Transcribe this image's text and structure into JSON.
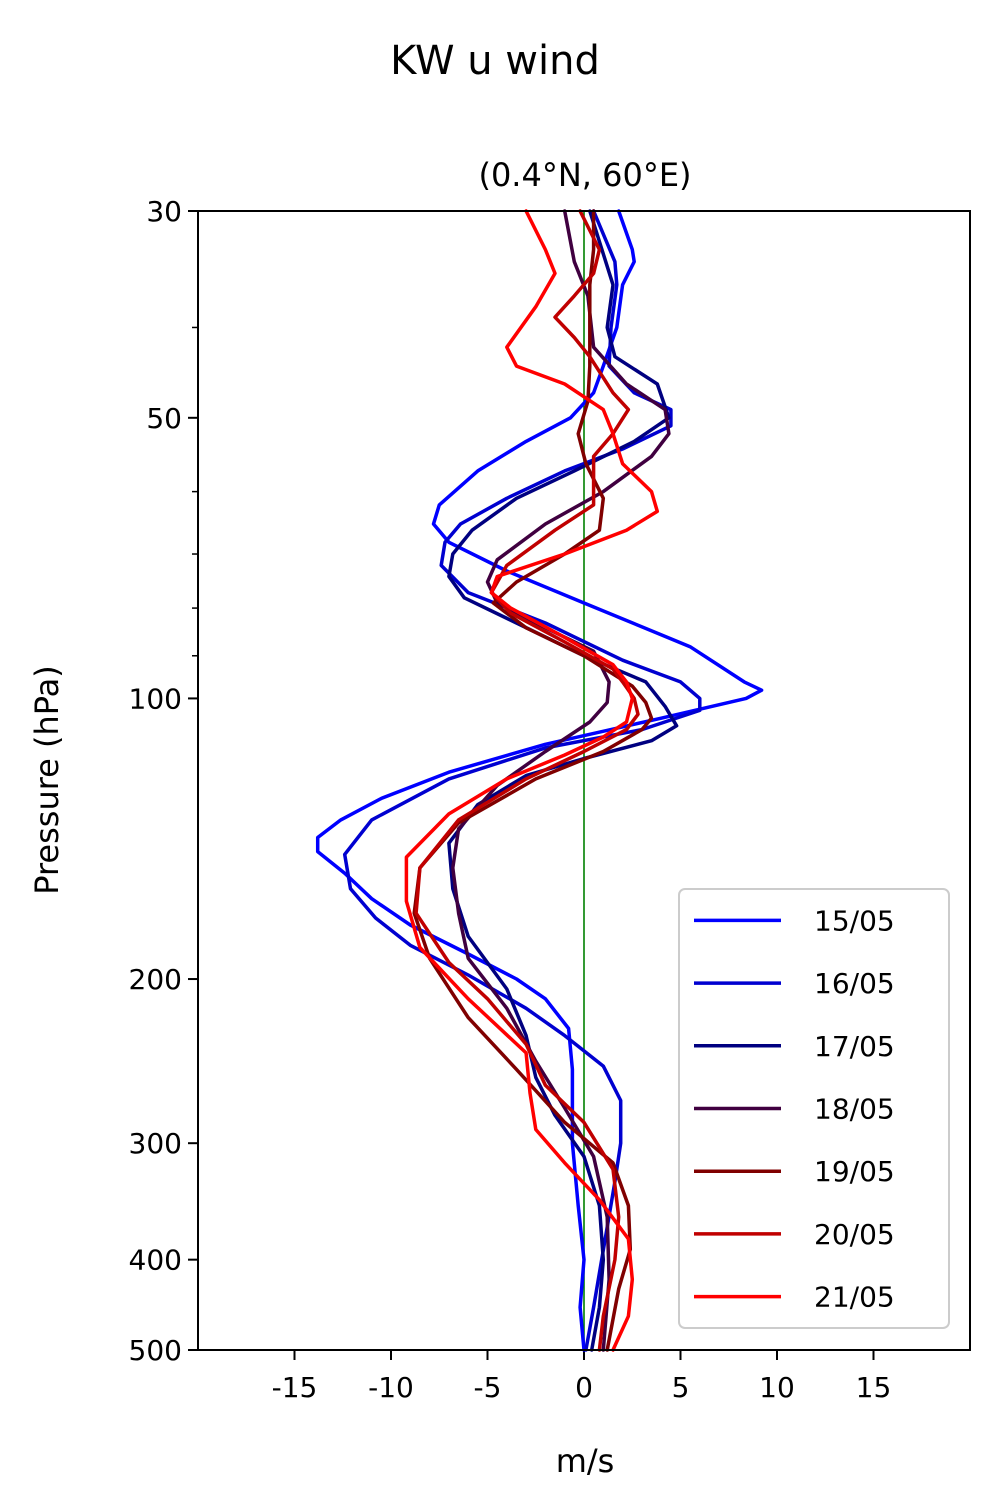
{
  "chart_data": {
    "type": "line",
    "title": "KW u wind",
    "subtitle": "(0.4°N, 60°E)",
    "xlabel": "m/s",
    "ylabel": "Pressure (hPa)",
    "xlim": [
      -20,
      20
    ],
    "ylim": [
      500,
      30
    ],
    "yscale": "log",
    "x_ticks": [
      -15,
      -10,
      -5,
      0,
      5,
      10,
      15
    ],
    "x_tick_labels": [
      "-15",
      "-10",
      "-5",
      "0",
      "5",
      "10",
      "15"
    ],
    "y_ticks": [
      30,
      50,
      100,
      200,
      300,
      400,
      500
    ],
    "y_tick_labels": [
      "30",
      "50",
      "100",
      "200",
      "300",
      "400",
      "500"
    ],
    "y_minor_ticks": [
      40,
      60,
      70,
      80,
      90
    ],
    "zero_line_color": "#008000",
    "legend_position": "lower-right",
    "grid": false,
    "series": [
      {
        "name": "15/05",
        "color": "#0000ff",
        "points": [
          [
            1.8,
            30
          ],
          [
            2.5,
            33
          ],
          [
            2.6,
            34
          ],
          [
            2.0,
            36
          ],
          [
            1.7,
            40
          ],
          [
            1.0,
            44
          ],
          [
            0.5,
            47
          ],
          [
            -0.7,
            50
          ],
          [
            -3,
            53
          ],
          [
            -5.5,
            57
          ],
          [
            -7.5,
            62
          ],
          [
            -7.8,
            65
          ],
          [
            -7,
            68
          ],
          [
            -4,
            73
          ],
          [
            0,
            79
          ],
          [
            5.5,
            88
          ],
          [
            8.3,
            96
          ],
          [
            9.2,
            98
          ],
          [
            8.4,
            100
          ],
          [
            4,
            105
          ],
          [
            -2,
            112
          ],
          [
            -7,
            120
          ],
          [
            -10.5,
            128
          ],
          [
            -12.6,
            135
          ],
          [
            -13.8,
            141
          ],
          [
            -13.8,
            146
          ],
          [
            -12.4,
            154
          ],
          [
            -11,
            164
          ],
          [
            -9,
            175
          ],
          [
            -6,
            188
          ],
          [
            -3.5,
            200
          ],
          [
            -2,
            210
          ],
          [
            -0.8,
            226
          ],
          [
            -0.6,
            250
          ],
          [
            -0.6,
            300
          ],
          [
            -0.3,
            350
          ],
          [
            0,
            400
          ],
          [
            -0.2,
            450
          ],
          [
            0,
            500
          ]
        ]
      },
      {
        "name": "16/05",
        "color": "#0000d0",
        "points": [
          [
            0.5,
            30
          ],
          [
            1.6,
            34
          ],
          [
            1.7,
            36
          ],
          [
            1.4,
            40
          ],
          [
            1.3,
            44
          ],
          [
            2.6,
            47
          ],
          [
            4.5,
            49
          ],
          [
            4.5,
            51
          ],
          [
            2,
            54
          ],
          [
            -1,
            57
          ],
          [
            -4,
            61
          ],
          [
            -6.4,
            65
          ],
          [
            -7.2,
            68
          ],
          [
            -7.4,
            72
          ],
          [
            -6,
            77
          ],
          [
            -2,
            83
          ],
          [
            2,
            91
          ],
          [
            5,
            96
          ],
          [
            6,
            100
          ],
          [
            6,
            103
          ],
          [
            3,
            108
          ],
          [
            -2,
            113
          ],
          [
            -7,
            122
          ],
          [
            -11,
            135
          ],
          [
            -12.4,
            147
          ],
          [
            -12.1,
            160
          ],
          [
            -10.8,
            172
          ],
          [
            -9,
            184
          ],
          [
            -6,
            198
          ],
          [
            -3,
            215
          ],
          [
            -1,
            230
          ],
          [
            1,
            248
          ],
          [
            1.9,
            270
          ],
          [
            1.9,
            300
          ],
          [
            1.6,
            330
          ],
          [
            1.1,
            380
          ],
          [
            0.5,
            450
          ],
          [
            0.1,
            500
          ]
        ]
      },
      {
        "name": "17/05",
        "color": "#000080",
        "points": [
          [
            0.3,
            30
          ],
          [
            1.5,
            36
          ],
          [
            1.2,
            40
          ],
          [
            1.6,
            43
          ],
          [
            3.8,
            46
          ],
          [
            4.4,
            50
          ],
          [
            2.6,
            53
          ],
          [
            -0.5,
            57
          ],
          [
            -3.5,
            61
          ],
          [
            -5.8,
            66
          ],
          [
            -6.8,
            70
          ],
          [
            -7,
            74
          ],
          [
            -6.2,
            78
          ],
          [
            -3.5,
            83
          ],
          [
            0,
            90
          ],
          [
            3.2,
            96
          ],
          [
            4.2,
            102
          ],
          [
            4.8,
            107
          ],
          [
            3.5,
            111
          ],
          [
            0,
            116
          ],
          [
            -3,
            121
          ],
          [
            -5.5,
            130
          ],
          [
            -7,
            143
          ],
          [
            -6.8,
            160
          ],
          [
            -6,
            180
          ],
          [
            -4,
            205
          ],
          [
            -3,
            230
          ],
          [
            -2.5,
            255
          ],
          [
            -1.5,
            280
          ],
          [
            0,
            310
          ],
          [
            0.8,
            350
          ],
          [
            1.0,
            400
          ],
          [
            0.8,
            450
          ],
          [
            0.4,
            500
          ]
        ]
      },
      {
        "name": "18/05",
        "color": "#400040",
        "points": [
          [
            -1,
            30
          ],
          [
            -0.5,
            34
          ],
          [
            0.2,
            37
          ],
          [
            0.5,
            42
          ],
          [
            2.2,
            46
          ],
          [
            4.2,
            49
          ],
          [
            4.4,
            52
          ],
          [
            3.5,
            55
          ],
          [
            1,
            60
          ],
          [
            -2,
            65
          ],
          [
            -4.5,
            71
          ],
          [
            -5,
            75
          ],
          [
            -4.5,
            79
          ],
          [
            -2,
            84
          ],
          [
            0.5,
            89
          ],
          [
            1.3,
            96
          ],
          [
            1.2,
            101
          ],
          [
            0.3,
            106
          ],
          [
            -2,
            114
          ],
          [
            -4.5,
            124
          ],
          [
            -6.5,
            138
          ],
          [
            -6.8,
            152
          ],
          [
            -6.5,
            170
          ],
          [
            -6,
            190
          ],
          [
            -4,
            215
          ],
          [
            -2.5,
            245
          ],
          [
            -1,
            275
          ],
          [
            0.5,
            310
          ],
          [
            1.2,
            360
          ],
          [
            1.3,
            420
          ],
          [
            1.0,
            500
          ]
        ]
      },
      {
        "name": "19/05",
        "color": "#800000",
        "points": [
          [
            0.5,
            30
          ],
          [
            0.5,
            33
          ],
          [
            0.3,
            36
          ],
          [
            0.3,
            40
          ],
          [
            0.3,
            44
          ],
          [
            0.2,
            48
          ],
          [
            -0.3,
            52
          ],
          [
            0.1,
            56
          ],
          [
            1.0,
            61
          ],
          [
            0.8,
            66
          ],
          [
            -1,
            70
          ],
          [
            -3.5,
            75
          ],
          [
            -4.7,
            79
          ],
          [
            -3,
            84
          ],
          [
            0,
            90
          ],
          [
            2.5,
            97
          ],
          [
            3.2,
            101
          ],
          [
            3.5,
            105
          ],
          [
            3,
            108
          ],
          [
            1,
            114
          ],
          [
            -2.5,
            122
          ],
          [
            -6.5,
            136
          ],
          [
            -8.5,
            152
          ],
          [
            -8.8,
            170
          ],
          [
            -8,
            190
          ],
          [
            -6,
            220
          ],
          [
            -3.5,
            250
          ],
          [
            -1,
            285
          ],
          [
            1.5,
            315
          ],
          [
            2.3,
            350
          ],
          [
            2.4,
            390
          ],
          [
            1.8,
            430
          ],
          [
            1.2,
            500
          ]
        ]
      },
      {
        "name": "20/05",
        "color": "#c00000",
        "points": [
          [
            -0.2,
            30
          ],
          [
            0.8,
            33
          ],
          [
            0.5,
            35
          ],
          [
            -0.5,
            37
          ],
          [
            -1.5,
            39
          ],
          [
            -0.5,
            41
          ],
          [
            0.3,
            43
          ],
          [
            1.5,
            47
          ],
          [
            2.3,
            49
          ],
          [
            1.5,
            52
          ],
          [
            0.5,
            55
          ],
          [
            0.5,
            59
          ],
          [
            0.5,
            62
          ],
          [
            -1.5,
            66
          ],
          [
            -4,
            72
          ],
          [
            -4.8,
            77
          ],
          [
            -3.8,
            81
          ],
          [
            -1,
            87
          ],
          [
            1.5,
            93
          ],
          [
            2,
            96
          ],
          [
            2.6,
            100
          ],
          [
            2.8,
            104
          ],
          [
            2.2,
            108
          ],
          [
            0,
            114
          ],
          [
            -3,
            122
          ],
          [
            -6.5,
            135
          ],
          [
            -8.5,
            152
          ],
          [
            -8.7,
            170
          ],
          [
            -7,
            192
          ],
          [
            -5,
            210
          ],
          [
            -3,
            235
          ],
          [
            -2,
            260
          ],
          [
            0,
            285
          ],
          [
            1.5,
            320
          ],
          [
            1.8,
            360
          ],
          [
            1.6,
            400
          ],
          [
            1.0,
            460
          ],
          [
            0.8,
            500
          ]
        ]
      },
      {
        "name": "21/05",
        "color": "#ff0000",
        "points": [
          [
            -3,
            30
          ],
          [
            -2,
            33
          ],
          [
            -1.5,
            35
          ],
          [
            -2.5,
            38
          ],
          [
            -4,
            42
          ],
          [
            -3.5,
            44
          ],
          [
            -1,
            46
          ],
          [
            1,
            49
          ],
          [
            1.5,
            52
          ],
          [
            2,
            56
          ],
          [
            3.5,
            60
          ],
          [
            3.8,
            63
          ],
          [
            2.2,
            66
          ],
          [
            -1,
            70
          ],
          [
            -4.5,
            74
          ],
          [
            -4.8,
            77
          ],
          [
            -3.8,
            80
          ],
          [
            -1,
            86
          ],
          [
            1.5,
            92
          ],
          [
            2.2,
            96
          ],
          [
            2.5,
            100
          ],
          [
            2.2,
            106
          ],
          [
            1,
            110
          ],
          [
            -1,
            115
          ],
          [
            -4,
            122
          ],
          [
            -7,
            133
          ],
          [
            -9.2,
            148
          ],
          [
            -9.2,
            165
          ],
          [
            -8.5,
            185
          ],
          [
            -6,
            210
          ],
          [
            -3,
            240
          ],
          [
            -2.8,
            265
          ],
          [
            -2.5,
            290
          ],
          [
            -1,
            315
          ],
          [
            0.8,
            345
          ],
          [
            2.3,
            380
          ],
          [
            2.5,
            420
          ],
          [
            2.3,
            460
          ],
          [
            1.5,
            500
          ]
        ]
      }
    ]
  }
}
